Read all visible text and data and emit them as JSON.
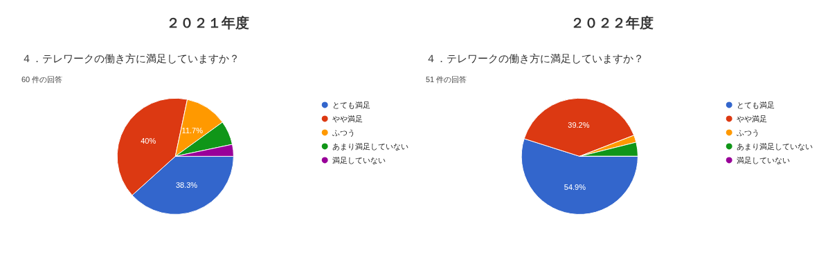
{
  "chart_data": [
    {
      "type": "pie",
      "title": "２０２１年度",
      "subtitle": "４．テレワークの働き方に満足していますか？",
      "annotations": [
        "60 件の回答"
      ],
      "categories": [
        "とても満足",
        "やや満足",
        "ふつう",
        "あまり満足していない",
        "満足していない"
      ],
      "values": [
        38.3,
        40,
        11.7,
        6.7,
        3.3
      ],
      "value_labels": [
        "38.3%",
        "40%",
        "11.7%",
        null,
        null
      ],
      "colors": [
        "#3366cc",
        "#dc3912",
        "#ff9900",
        "#109618",
        "#990099"
      ],
      "legend": "right"
    },
    {
      "type": "pie",
      "title": "２０２２年度",
      "subtitle": "４．テレワークの働き方に満足していますか？",
      "annotations": [
        "51 件の回答"
      ],
      "categories": [
        "とても満足",
        "やや満足",
        "ふつう",
        "あまり満足していない",
        "満足していない"
      ],
      "values": [
        54.9,
        39.2,
        2,
        3.9,
        0
      ],
      "value_labels": [
        "54.9%",
        "39.2%",
        null,
        null,
        null
      ],
      "colors": [
        "#3366cc",
        "#dc3912",
        "#ff9900",
        "#109618",
        "#990099"
      ],
      "legend": "right"
    }
  ]
}
